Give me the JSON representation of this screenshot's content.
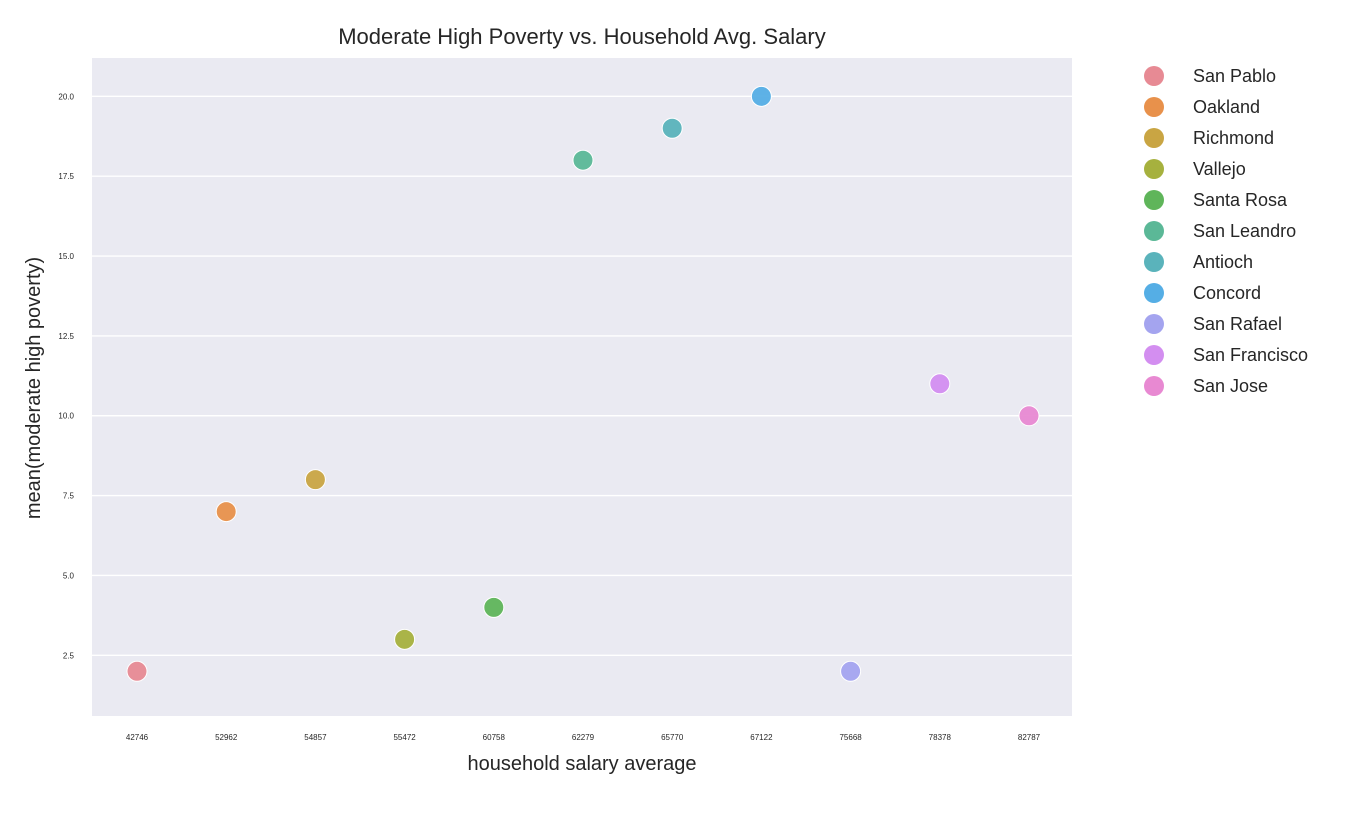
{
  "chart_data": {
    "type": "scatter",
    "title": "Moderate High Poverty vs. Household Avg. Salary",
    "xlabel": "household salary average",
    "ylabel": "mean(moderate high poverty)",
    "categories": [
      "42746",
      "52962",
      "54857",
      "55472",
      "60758",
      "62279",
      "65770",
      "67122",
      "75668",
      "78378",
      "82787"
    ],
    "ylim": [
      0.6,
      21.2
    ],
    "yticks": [
      2.5,
      5.0,
      7.5,
      10.0,
      12.5,
      15.0,
      17.5,
      20.0
    ],
    "ytick_labels": [
      "2.5",
      "5.0",
      "7.5",
      "10.0",
      "12.5",
      "15.0",
      "17.5",
      "20.0"
    ],
    "grid": true,
    "legend_position": "outside-right",
    "series": [
      {
        "name": "San Pablo",
        "x": "42746",
        "y": 2,
        "color": "#e78a94"
      },
      {
        "name": "Oakland",
        "x": "52962",
        "y": 7,
        "color": "#e8914b"
      },
      {
        "name": "Richmond",
        "x": "54857",
        "y": 8,
        "color": "#c9a543"
      },
      {
        "name": "Vallejo",
        "x": "55472",
        "y": 3,
        "color": "#a6b13e"
      },
      {
        "name": "Santa Rosa",
        "x": "60758",
        "y": 4,
        "color": "#5fb55a"
      },
      {
        "name": "San Leandro",
        "x": "62279",
        "y": 18,
        "color": "#5bb897"
      },
      {
        "name": "Antioch",
        "x": "65770",
        "y": 19,
        "color": "#5ab3bb"
      },
      {
        "name": "Concord",
        "x": "67122",
        "y": 20,
        "color": "#55aee5"
      },
      {
        "name": "San Rafael",
        "x": "75668",
        "y": 2,
        "color": "#a4a4ef"
      },
      {
        "name": "San Francisco",
        "x": "78378",
        "y": 11,
        "color": "#d38ef0"
      },
      {
        "name": "San Jose",
        "x": "82787",
        "y": 10,
        "color": "#e889d2"
      }
    ]
  }
}
